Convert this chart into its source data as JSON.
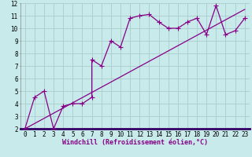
{
  "line1_x": [
    0,
    1,
    2,
    3,
    4,
    5,
    6,
    7,
    7,
    8,
    9,
    10,
    11,
    12,
    13,
    14,
    15,
    16,
    17,
    18,
    19,
    20,
    21,
    22,
    23
  ],
  "line1_y": [
    2.0,
    4.5,
    5.0,
    2.0,
    3.8,
    4.0,
    4.0,
    4.5,
    7.5,
    7.0,
    9.0,
    8.5,
    10.8,
    11.0,
    11.1,
    10.5,
    10.0,
    10.0,
    10.5,
    10.8,
    9.5,
    11.8,
    9.5,
    9.8,
    10.8
  ],
  "line2_x": [
    0,
    23
  ],
  "line2_y": [
    2.0,
    11.5
  ],
  "line_color": "#880088",
  "bg_color": "#c8eaea",
  "grid_color": "#aacccc",
  "xlabel": "Windchill (Refroidissement éolien,°C)",
  "xlim": [
    -0.5,
    23.5
  ],
  "ylim": [
    2,
    12
  ],
  "yticks": [
    2,
    3,
    4,
    5,
    6,
    7,
    8,
    9,
    10,
    11,
    12
  ],
  "xticks": [
    0,
    1,
    2,
    3,
    4,
    5,
    6,
    7,
    8,
    9,
    10,
    11,
    12,
    13,
    14,
    15,
    16,
    17,
    18,
    19,
    20,
    21,
    22,
    23
  ],
  "marker1": "+",
  "marker1_size": 4,
  "line_width": 0.9,
  "xlabel_fontsize": 6.0,
  "tick_fontsize": 5.5
}
